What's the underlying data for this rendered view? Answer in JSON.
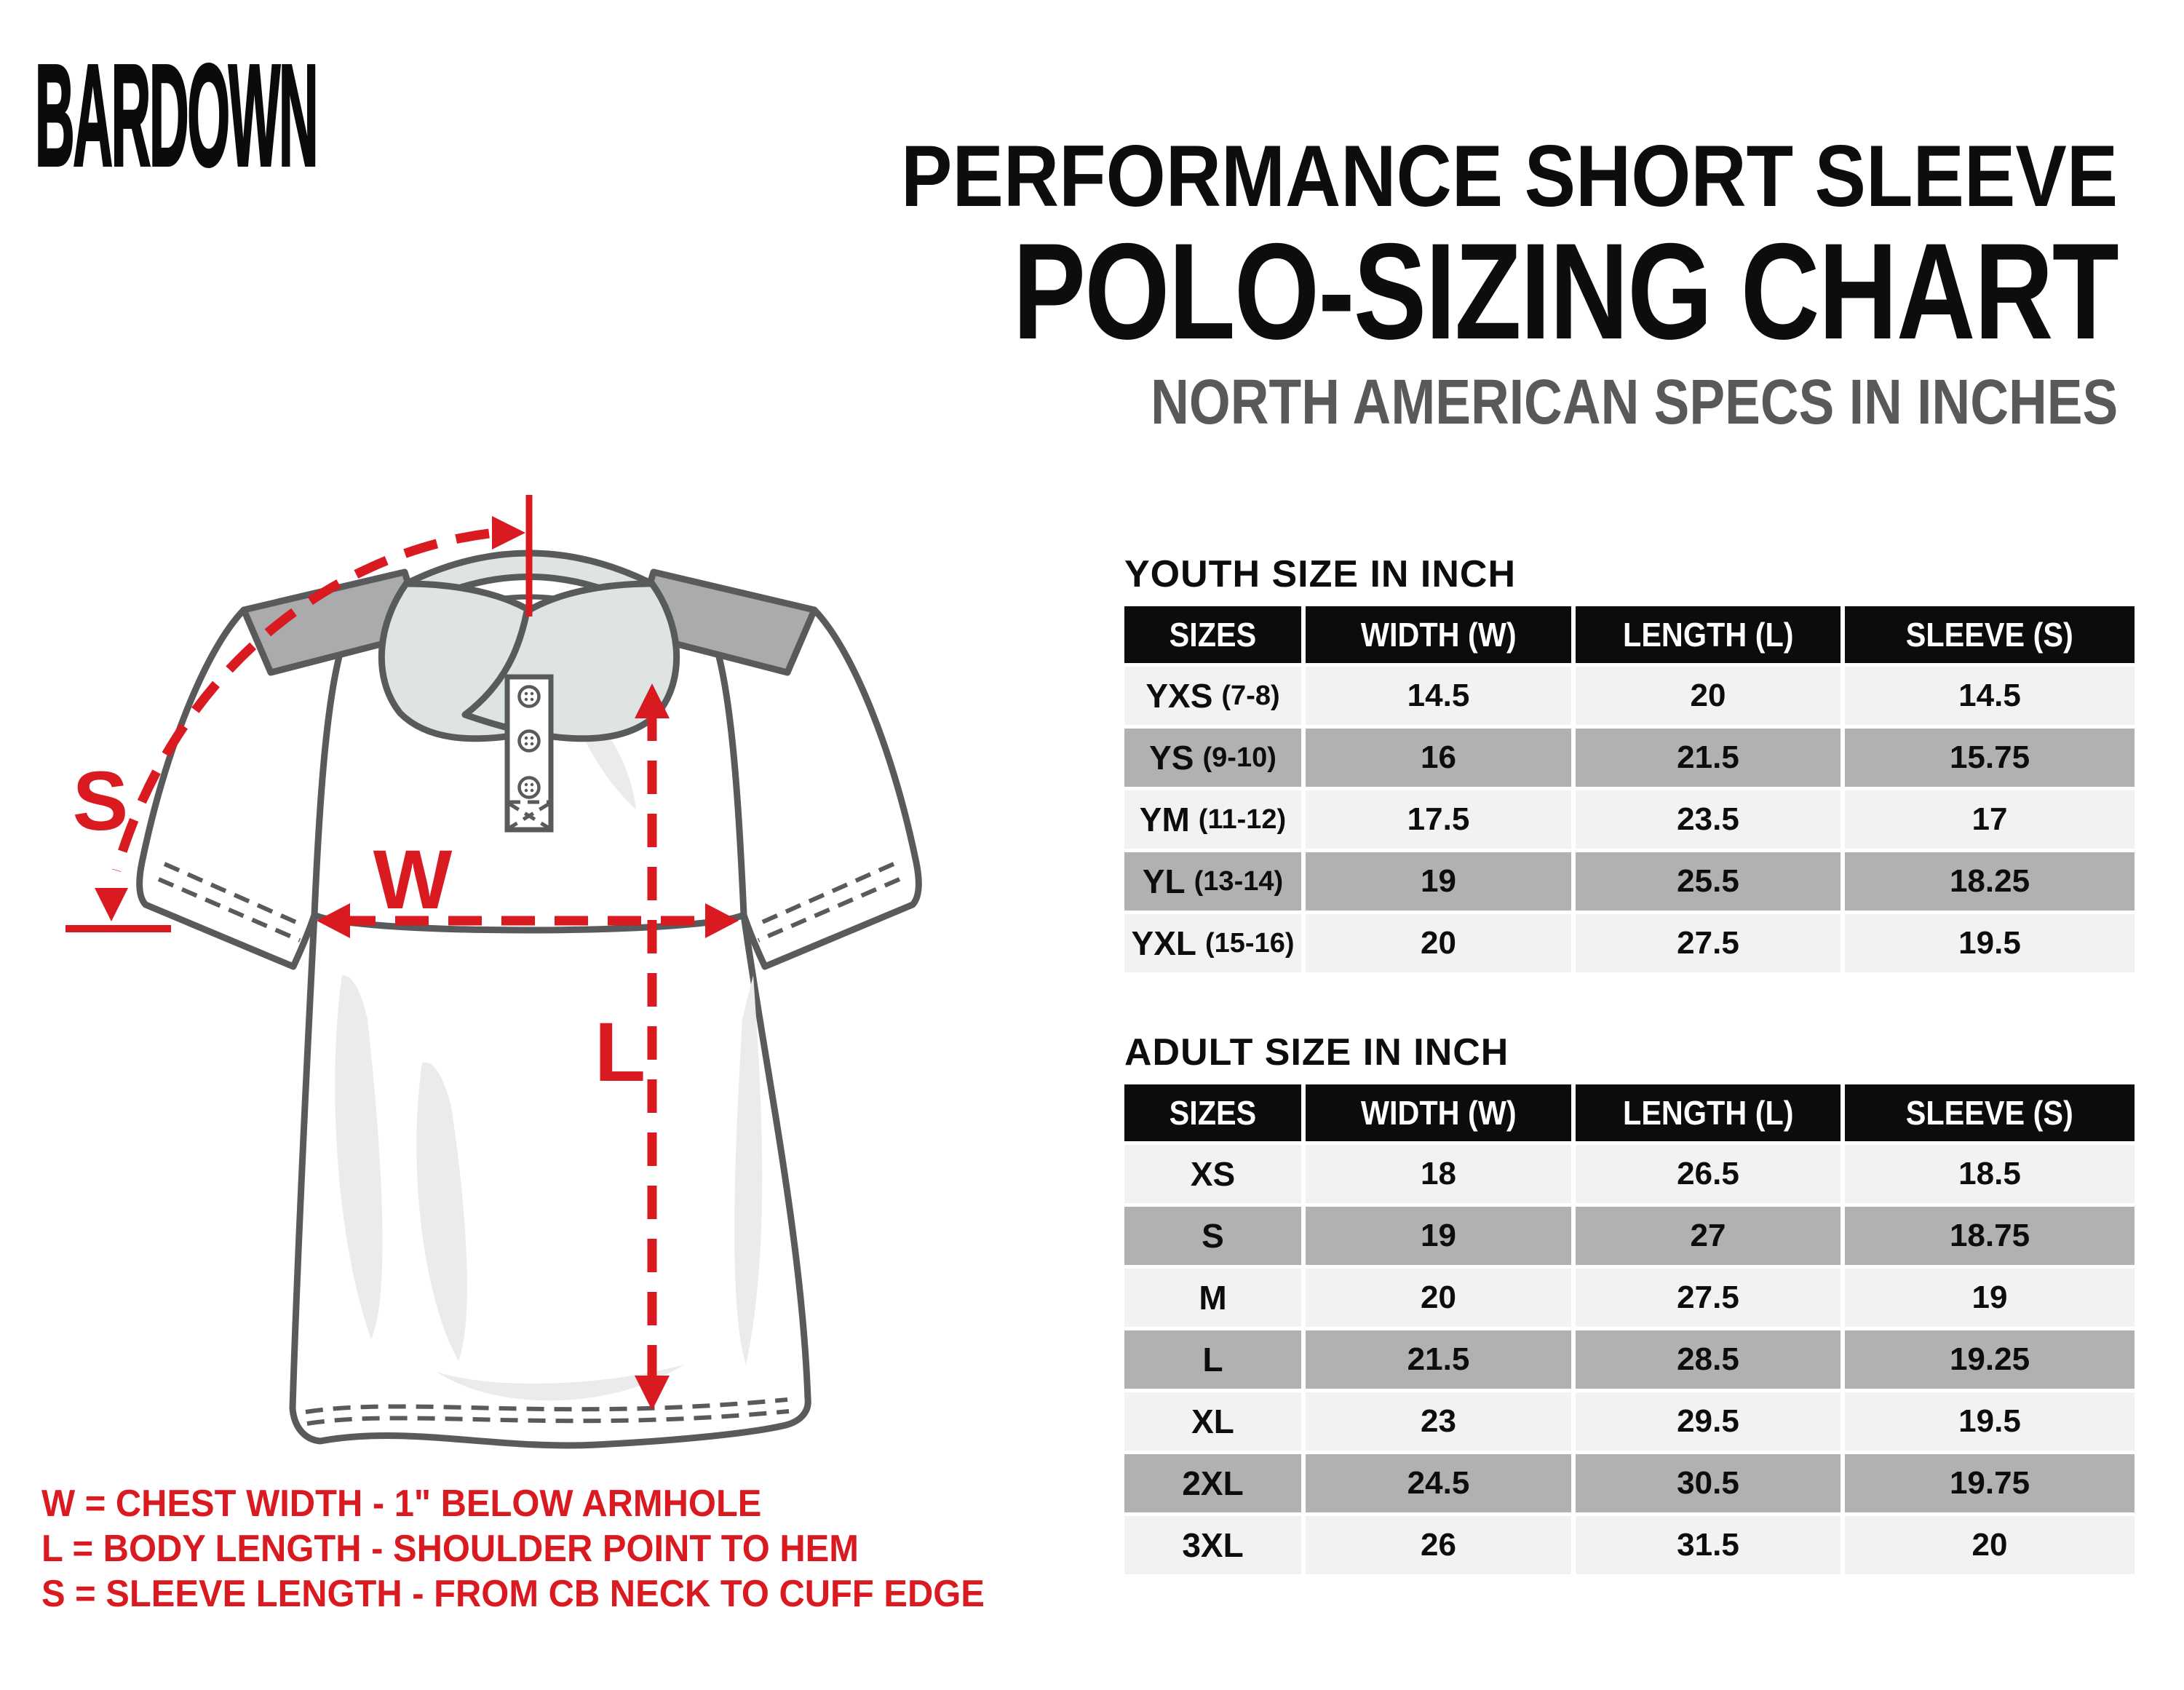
{
  "logo": "BARDOWN",
  "title": {
    "line1": "PERFORMANCE SHORT SLEEVE",
    "line2": "POLO-SIZING CHART",
    "subtitle": "NORTH AMERICAN SPECS IN INCHES"
  },
  "diagram": {
    "labels": {
      "s": "S",
      "w": "W",
      "l": "L"
    },
    "legend": [
      "W = CHEST WIDTH - 1\" BELOW ARMHOLE",
      "L = BODY LENGTH - SHOULDER POINT TO HEM",
      "S = SLEEVE LENGTH - FROM CB NECK TO CUFF EDGE"
    ]
  },
  "youth_table": {
    "title": "YOUTH SIZE IN INCH",
    "headers": [
      "SIZES",
      "WIDTH (W)",
      "LENGTH (L)",
      "SLEEVE (S)"
    ],
    "rows": [
      {
        "size": "YXS",
        "range": "(7-8)",
        "width": "14.5",
        "length": "20",
        "sleeve": "14.5"
      },
      {
        "size": "YS",
        "range": "(9-10)",
        "width": "16",
        "length": "21.5",
        "sleeve": "15.75"
      },
      {
        "size": "YM",
        "range": "(11-12)",
        "width": "17.5",
        "length": "23.5",
        "sleeve": "17"
      },
      {
        "size": "YL",
        "range": "(13-14)",
        "width": "19",
        "length": "25.5",
        "sleeve": "18.25"
      },
      {
        "size": "YXL",
        "range": "(15-16)",
        "width": "20",
        "length": "27.5",
        "sleeve": "19.5"
      }
    ]
  },
  "adult_table": {
    "title": "ADULT SIZE IN INCH",
    "headers": [
      "SIZES",
      "WIDTH (W)",
      "LENGTH (L)",
      "SLEEVE (S)"
    ],
    "rows": [
      {
        "size": "XS",
        "range": "",
        "width": "18",
        "length": "26.5",
        "sleeve": "18.5"
      },
      {
        "size": "S",
        "range": "",
        "width": "19",
        "length": "27",
        "sleeve": "18.75"
      },
      {
        "size": "M",
        "range": "",
        "width": "20",
        "length": "27.5",
        "sleeve": "19"
      },
      {
        "size": "L",
        "range": "",
        "width": "21.5",
        "length": "28.5",
        "sleeve": "19.25"
      },
      {
        "size": "XL",
        "range": "",
        "width": "23",
        "length": "29.5",
        "sleeve": "19.5"
      },
      {
        "size": "2XL",
        "range": "",
        "width": "24.5",
        "length": "30.5",
        "sleeve": "19.75"
      },
      {
        "size": "3XL",
        "range": "",
        "width": "26",
        "length": "31.5",
        "sleeve": "20"
      }
    ]
  },
  "colors": {
    "accent_red": "#da1a21",
    "header_black": "#0c0c0c",
    "row_light": "#f2f2f2",
    "row_gray": "#b1b1b1",
    "subtitle_gray": "#58595b",
    "outline_gray": "#595a5c",
    "collar_fill": "#dde4e1",
    "shoulder_fill": "#a9abad"
  }
}
